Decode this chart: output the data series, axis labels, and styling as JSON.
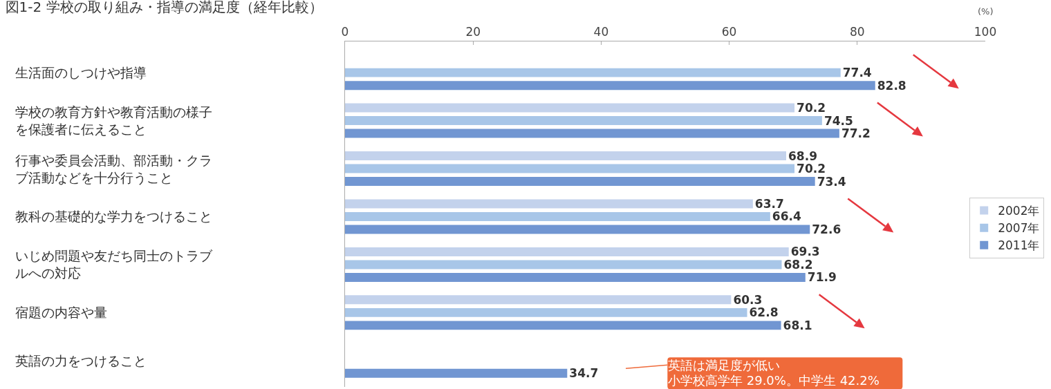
{
  "chart_data": {
    "type": "bar",
    "orientation": "horizontal",
    "title": "図1-2 学校の取り組み・指導の満足度（経年比較）",
    "x2label": "(%)",
    "categories": [
      "生活面のしつけや指導",
      "学校の教育方針や教育活動の様子を保護者に伝えること",
      "行事や委員会活動、部活動・クラブ活動などを十分行うこと",
      "教科の基礎的な学力をつけること",
      "いじめ問題や友だち同士のトラブルへの対応",
      "宿題の内容や量",
      "英語の力をつけること"
    ],
    "series": [
      {
        "name": "2002年",
        "color": "#c3d2ec",
        "axis": "x2",
        "values": [
          null,
          70.2,
          68.9,
          63.7,
          69.3,
          60.3,
          null
        ]
      },
      {
        "name": "2007年",
        "color": "#a8c6e8",
        "axis": "x2",
        "values": [
          77.4,
          74.5,
          70.2,
          66.4,
          68.2,
          62.8,
          null
        ]
      },
      {
        "name": "2011年",
        "color": "#7196d2",
        "axis": "x2",
        "values": [
          82.8,
          77.2,
          73.4,
          72.6,
          71.9,
          68.1,
          34.7
        ]
      }
    ],
    "x2lim": [
      0,
      100
    ],
    "x2ticks": [
      0,
      20,
      40,
      60,
      80,
      100
    ],
    "data_labels": true,
    "legend": "right",
    "annotations": [
      "英語は満足度が低い",
      "小学校高学年 29.0%。中学生 42.2%"
    ]
  }
}
